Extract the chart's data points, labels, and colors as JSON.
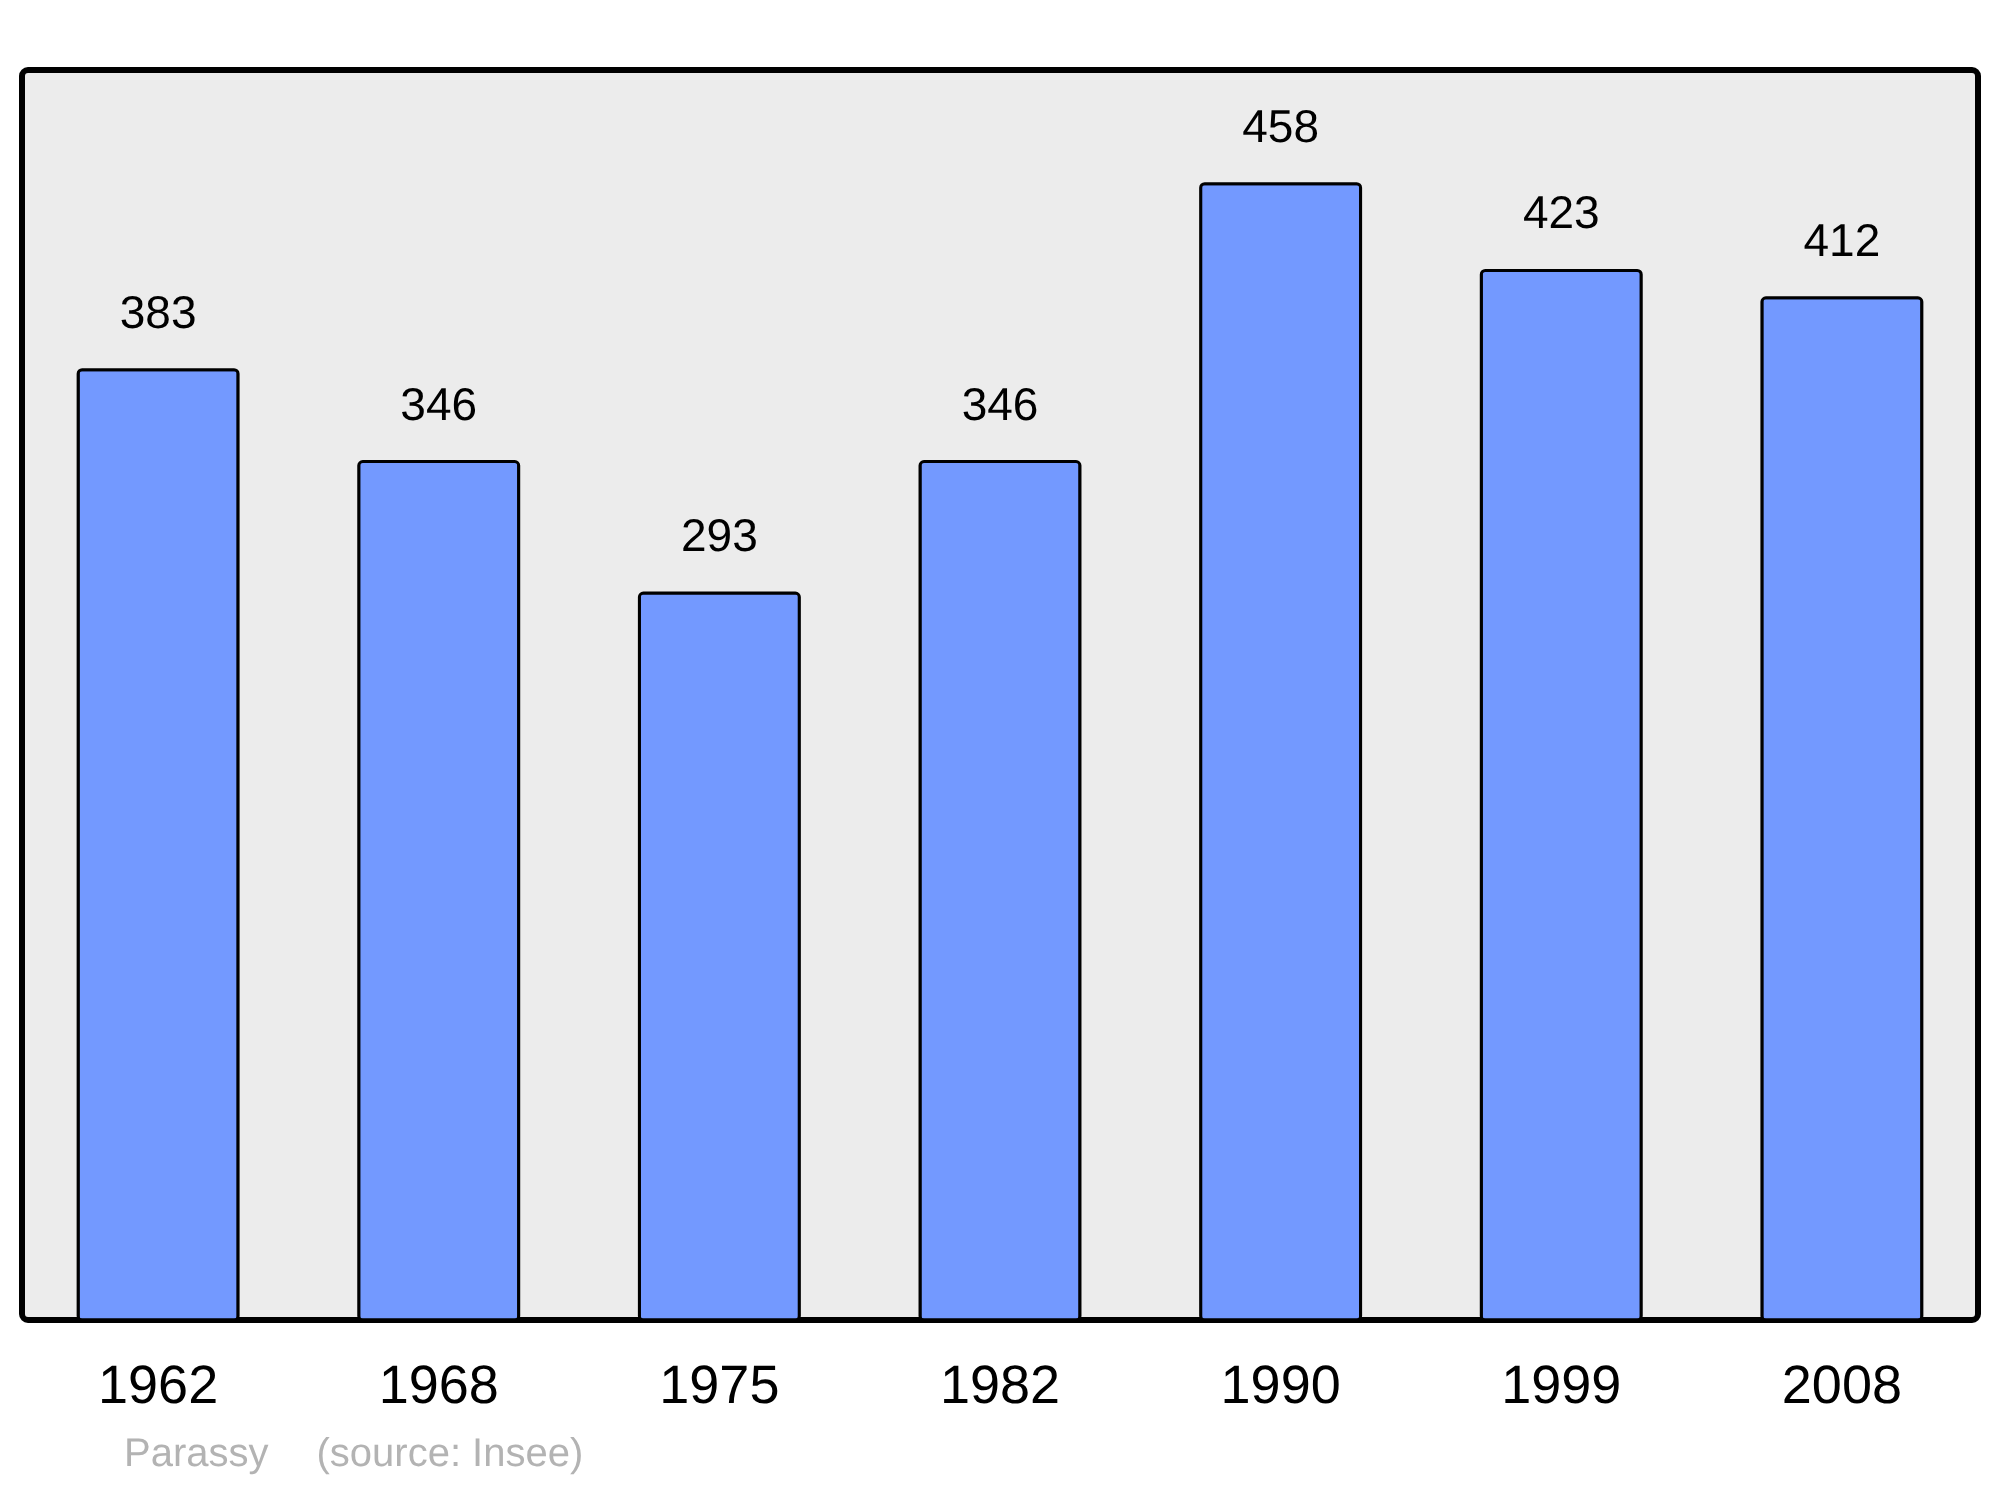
{
  "chart_data": {
    "type": "bar",
    "categories": [
      "1962",
      "1968",
      "1975",
      "1982",
      "1990",
      "1999",
      "2008"
    ],
    "values": [
      383,
      346,
      293,
      346,
      458,
      423,
      412
    ],
    "color": "#7399ff",
    "data_labels": true,
    "annotations": [
      "Parassy",
      "(source: Insee)"
    ]
  }
}
